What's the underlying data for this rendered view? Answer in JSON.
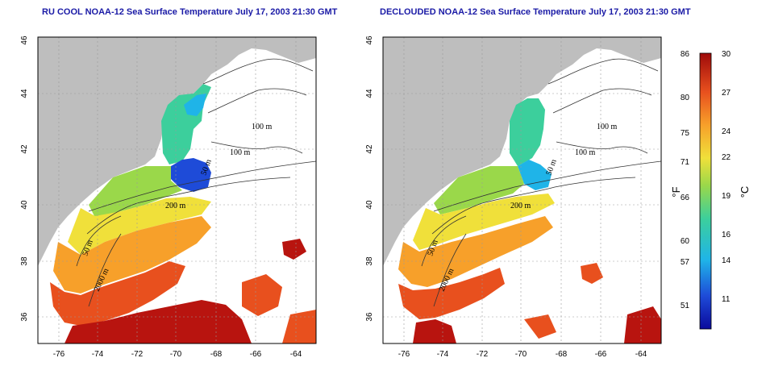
{
  "titles": {
    "left": "RU COOL NOAA-12 Sea Surface Temperature July 17, 2003 21:30 GMT",
    "right": "DECLOUDED NOAA-12 Sea Surface Temperature July 17, 2003 21:30 GMT"
  },
  "axes": {
    "x_ticks": [
      "-76",
      "-74",
      "-72",
      "-70",
      "-68",
      "-66",
      "-64"
    ],
    "y_ticks": [
      "36",
      "38",
      "40",
      "42",
      "44",
      "46"
    ]
  },
  "contour_labels": [
    "100 m",
    "100 m",
    "50 m",
    "200 m",
    "50 m",
    "2000 m"
  ],
  "colorbar": {
    "f_ticks": [
      "86",
      "80",
      "75",
      "71",
      "66",
      "60",
      "57",
      "51"
    ],
    "c_ticks": [
      "30",
      "27",
      "24",
      "22",
      "19",
      "16",
      "14",
      "11"
    ],
    "f_unit": "°F",
    "c_unit": "°C"
  },
  "colors": {
    "land": "#bebebe",
    "title": "#1a1aa6"
  }
}
